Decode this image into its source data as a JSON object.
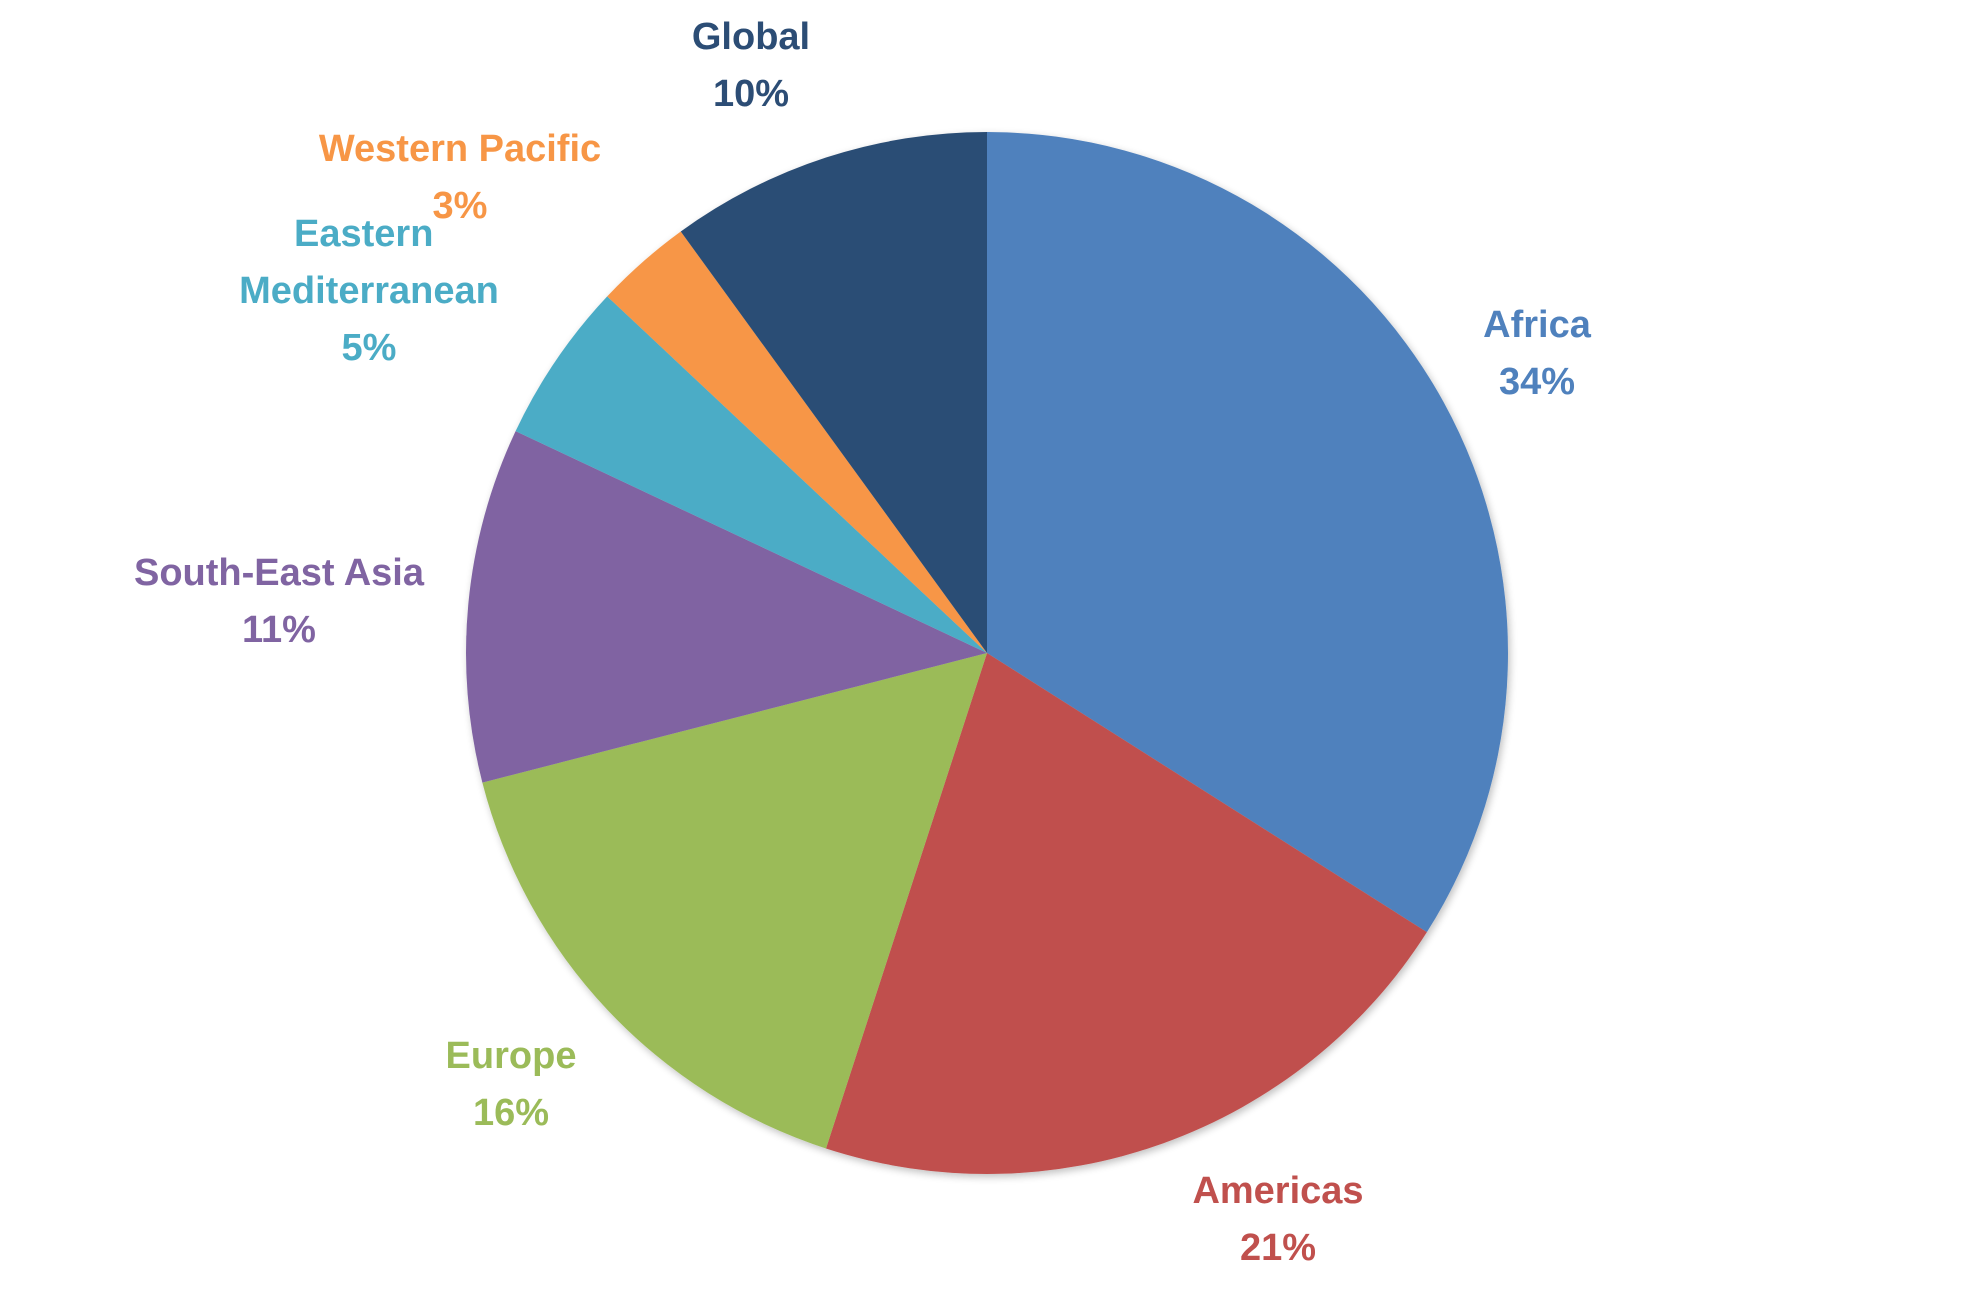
{
  "chart_data": {
    "type": "pie",
    "title": "",
    "slices": [
      {
        "name": "Africa",
        "value": 34,
        "label": "34%",
        "color": "#4F81BD"
      },
      {
        "name": "Americas",
        "value": 21,
        "label": "21%",
        "color": "#C0504D"
      },
      {
        "name": "Europe",
        "value": 16,
        "label": "16%",
        "color": "#9BBB59"
      },
      {
        "name": "South-East Asia",
        "value": 11,
        "label": "11%",
        "color": "#8064A2"
      },
      {
        "name": "Eastern Mediterranean",
        "value": 5,
        "label": "5%",
        "color": "#4BACC6"
      },
      {
        "name": "Western Pacific",
        "value": 3,
        "label": "3%",
        "color": "#F79646"
      },
      {
        "name": "Global",
        "value": 10,
        "label": "10%",
        "color": "#2C4D75"
      }
    ],
    "start_angle_deg": 0,
    "direction": "clockwise",
    "legend": "none",
    "data_labels": "outside"
  }
}
